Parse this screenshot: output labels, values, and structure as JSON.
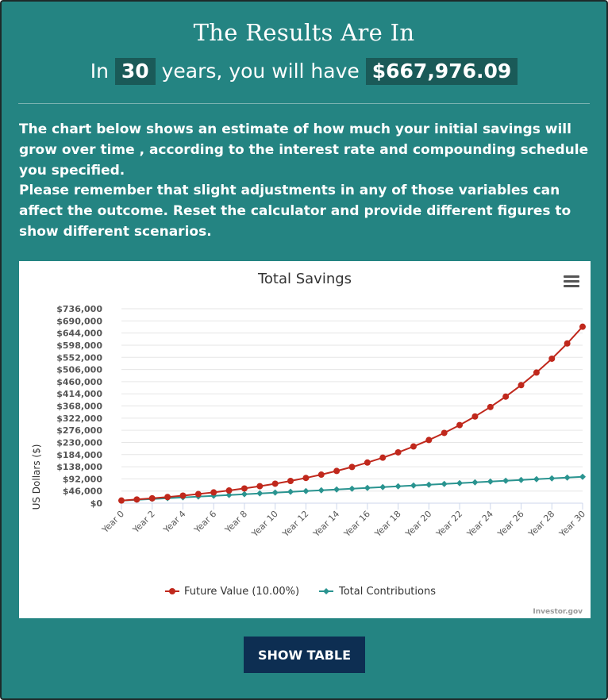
{
  "header": {
    "title": "The Results Are In",
    "line_prefix": "In",
    "years": "30",
    "line_middle": "years, you will have",
    "amount": "$667,976.09"
  },
  "paragraphs": [
    "The chart below shows an estimate of how much your initial savings will grow over time , according to the interest rate and compounding schedule you specified.",
    "Please remember that slight adjustments in any of those variables can affect the outcome. Reset the calculator and provide different figures to show different scenarios."
  ],
  "menu_icon": "hamburger-menu-icon",
  "credit": "Investor.gov",
  "show_table_label": "SHOW TABLE",
  "colors": {
    "background": "#248482",
    "future": "#c0281c",
    "contrib": "#2a9490",
    "button": "#0d2e52"
  },
  "chart_data": {
    "type": "line",
    "title": "Total Savings",
    "xlabel": "",
    "ylabel": "US Dollars ($)",
    "ylim": [
      0,
      736000
    ],
    "y_ticks": [
      "$0",
      "$46,000",
      "$92,000",
      "$138,000",
      "$184,000",
      "$230,000",
      "$276,000",
      "$322,000",
      "$368,000",
      "$414,000",
      "$460,000",
      "$506,000",
      "$552,000",
      "$598,000",
      "$644,000",
      "$690,000",
      "$736,000"
    ],
    "x_tick_labels": [
      "Year 0",
      "Year 2",
      "Year 4",
      "Year 6",
      "Year 8",
      "Year 10",
      "Year 12",
      "Year 14",
      "Year 16",
      "Year 18",
      "Year 20",
      "Year 22",
      "Year 24",
      "Year 26",
      "Year 28",
      "Year 30"
    ],
    "x": [
      0,
      1,
      2,
      3,
      4,
      5,
      6,
      7,
      8,
      9,
      10,
      11,
      12,
      13,
      14,
      15,
      16,
      17,
      18,
      19,
      20,
      21,
      22,
      23,
      24,
      25,
      26,
      27,
      28,
      29,
      30
    ],
    "grid": true,
    "legend_position": "bottom-center",
    "series": [
      {
        "name": "Future Value (10.00%)",
        "values": [
          10000,
          14000,
          18400,
          23240,
          28564,
          34420,
          40862,
          47949,
          55744,
          64318,
          73750,
          84125,
          95537,
          108091,
          121900,
          137090,
          153799,
          172179,
          192397,
          214637,
          239100,
          266010,
          295611,
          328172,
          363989,
          403388,
          446727,
          494400,
          546840,
          604524,
          667976
        ]
      },
      {
        "name": "Total Contributions",
        "values": [
          10000,
          13000,
          16000,
          19000,
          22000,
          25000,
          28000,
          31000,
          34000,
          37000,
          40000,
          43000,
          46000,
          49000,
          52000,
          55000,
          58000,
          61000,
          64000,
          67000,
          70000,
          73000,
          76000,
          79000,
          82000,
          85000,
          88000,
          91000,
          94000,
          97000,
          100000
        ]
      }
    ]
  }
}
